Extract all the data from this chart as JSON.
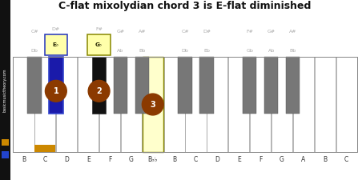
{
  "title": "C-flat mixolydian chord 3 is E-flat diminished",
  "n_white": 16,
  "white_names": [
    "B",
    "C",
    "D",
    "E",
    "F",
    "G",
    "B♭♭",
    "B",
    "C",
    "D",
    "E",
    "F",
    "G",
    "A",
    "B",
    "C"
  ],
  "black_after_white": [
    0,
    1,
    3,
    4,
    5,
    7,
    8,
    10,
    11,
    12
  ],
  "bk_top_labels": [
    [
      "C#",
      "Db"
    ],
    [
      "D#",
      "E♭"
    ],
    [
      "F#",
      "G♭"
    ],
    [
      "G#",
      "Ab"
    ],
    [
      "A#",
      "Bb"
    ],
    [
      "C#",
      "Db"
    ],
    [
      "D#",
      "Eb"
    ],
    [
      "F#",
      "Gb"
    ],
    [
      "G#",
      "Ab"
    ],
    [
      "A#",
      "Bb"
    ]
  ],
  "bk_boxed": [
    false,
    true,
    true,
    false,
    false,
    false,
    false,
    false,
    false,
    false
  ],
  "bk_box_fc": [
    "none",
    "#ffffaa",
    "#ffffaa",
    "none",
    "none",
    "none",
    "none",
    "none",
    "none",
    "none"
  ],
  "bk_box_ec": [
    "none",
    "#2233bb",
    "#888800",
    "none",
    "none",
    "none",
    "none",
    "none",
    "none",
    "none"
  ],
  "bk_box_label": [
    "",
    "E♭",
    "G♭",
    "",
    "",
    "",
    "",
    "",
    "",
    ""
  ],
  "bk_fc": [
    "#777777",
    "#1a1aaa",
    "#111111",
    "#777777",
    "#777777",
    "#777777",
    "#777777",
    "#777777",
    "#777777",
    "#777777"
  ],
  "bk_ec": [
    "#555555",
    "#3344cc",
    "#333333",
    "#555555",
    "#555555",
    "#555555",
    "#555555",
    "#555555",
    "#555555",
    "#555555"
  ],
  "bk_lw": [
    0.3,
    1.2,
    0.5,
    0.3,
    0.3,
    0.3,
    0.3,
    0.3,
    0.3,
    0.3
  ],
  "wk_orange_idx": 1,
  "wk_yellow_idx": 6,
  "circle_color": "#8B3A00",
  "chord_circles": [
    {
      "type": "black",
      "bk_idx": 1,
      "num": "1"
    },
    {
      "type": "black",
      "bk_idx": 2,
      "num": "2"
    },
    {
      "type": "white",
      "wk_idx": 6,
      "num": "3"
    }
  ],
  "bg_color": "#ffffff",
  "sidebar_bg": "#111111",
  "sidebar_text": "basicmusictheory.com",
  "sidebar_sq_colors": [
    "#cc8800",
    "#2244cc"
  ],
  "title_fontsize": 9.0,
  "wk_label_fontsize": 5.5,
  "bk_label_fontsize": 4.5,
  "circle_fontsize": 7,
  "gray_label_color": "#aaaaaa"
}
